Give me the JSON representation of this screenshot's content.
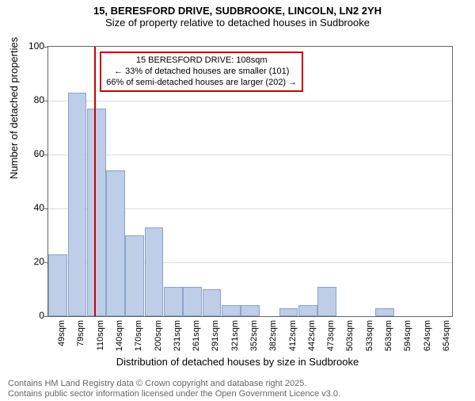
{
  "title": "15, BERESFORD DRIVE, SUDBROOKE, LINCOLN, LN2 2YH",
  "subtitle": "Size of property relative to detached houses in Sudbrooke",
  "title_fontsize": 13,
  "subtitle_fontsize": 13,
  "chart": {
    "type": "bar",
    "ylabel": "Number of detached properties",
    "xlabel": "Distribution of detached houses by size in Sudbrooke",
    "ylim": [
      0,
      100
    ],
    "yticks": [
      0,
      20,
      40,
      60,
      80,
      100
    ],
    "background_color": "#ffffff",
    "grid_color": "#dddddd",
    "axis_color": "#666666",
    "bar_fill": "#becde8",
    "bar_border": "#8ba3c8",
    "marker_color": "#cc0000",
    "categories": [
      "49sqm",
      "79sqm",
      "110sqm",
      "140sqm",
      "170sqm",
      "200sqm",
      "231sqm",
      "261sqm",
      "291sqm",
      "321sqm",
      "352sqm",
      "382sqm",
      "412sqm",
      "442sqm",
      "473sqm",
      "503sqm",
      "533sqm",
      "563sqm",
      "594sqm",
      "624sqm",
      "654sqm"
    ],
    "values": [
      23,
      83,
      77,
      54,
      30,
      33,
      11,
      11,
      10,
      4,
      4,
      0,
      3,
      4,
      11,
      0,
      0,
      3,
      0,
      0,
      0
    ],
    "marker_index": 2,
    "marker_offset": -0.06,
    "callout": {
      "line1": "15 BERESFORD DRIVE: 108sqm",
      "line2": "← 33% of detached houses are smaller (101)",
      "line3": "66% of semi-detached houses are larger (202) →"
    },
    "label_fontsize": 13,
    "tick_fontsize": 11
  },
  "footer": {
    "line1": "Contains HM Land Registry data © Crown copyright and database right 2025.",
    "line2": "Contains public sector information licensed under the Open Government Licence v3.0."
  }
}
